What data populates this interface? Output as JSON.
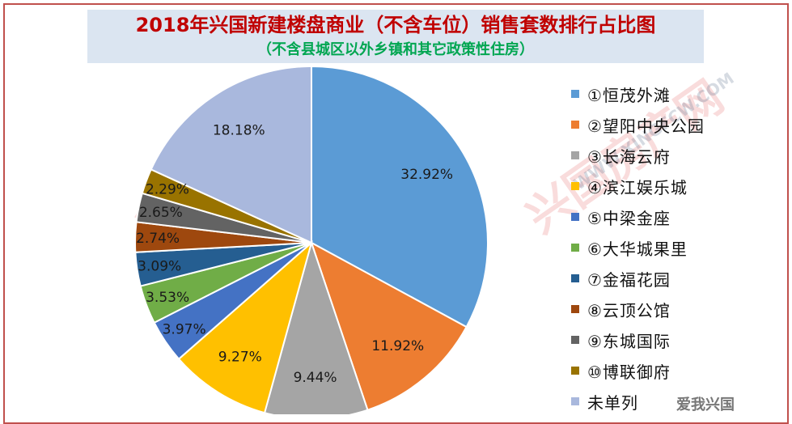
{
  "header": {
    "title": "2018年兴国新建楼盘商业（不含车位）销售套数排行占比图",
    "subtitle": "（不含县城区以外乡镇和其它政策性住房）"
  },
  "watermark": {
    "main_text": "兴国房产网",
    "url_text": "WWW.XINGFCW.COM",
    "corner_text": "爱我兴国"
  },
  "colors": {
    "frame": "#c0504d",
    "title": "#c00000",
    "subtitle": "#00a651"
  },
  "chart_data": {
    "type": "pie",
    "title": "2018年兴国新建楼盘商业（不含车位）销售套数排行占比图",
    "subtitle": "（不含县城区以外乡镇和其它政策性住房）",
    "legend_position": "right",
    "slices": [
      {
        "name": "①恒茂外滩",
        "value": 32.92,
        "label": "32.92%",
        "color": "#5b9bd5"
      },
      {
        "name": "②望阳中央公园",
        "value": 11.92,
        "label": "11.92%",
        "color": "#ed7d31"
      },
      {
        "name": "③长海云府",
        "value": 9.44,
        "label": "9.44%",
        "color": "#a5a5a5"
      },
      {
        "name": "④滨江娱乐城",
        "value": 9.27,
        "label": "9.27%",
        "color": "#ffc000"
      },
      {
        "name": "⑤中梁金座",
        "value": 3.97,
        "label": "3.97%",
        "color": "#4472c4"
      },
      {
        "name": "⑥大华城果里",
        "value": 3.53,
        "label": "3.53%",
        "color": "#70ad47"
      },
      {
        "name": "⑦金福花园",
        "value": 3.09,
        "label": "3.09%",
        "color": "#255e91"
      },
      {
        "name": "⑧云顶公馆",
        "value": 2.74,
        "label": "2.74%",
        "color": "#9e480e"
      },
      {
        "name": "⑨东城国际",
        "value": 2.65,
        "label": "2.65%",
        "color": "#636363"
      },
      {
        "name": "⑩博联御府",
        "value": 2.29,
        "label": "2.29%",
        "color": "#997300"
      },
      {
        "name": "未单列",
        "value": 18.18,
        "label": "18.18%",
        "color": "#a9b8dd"
      }
    ]
  }
}
